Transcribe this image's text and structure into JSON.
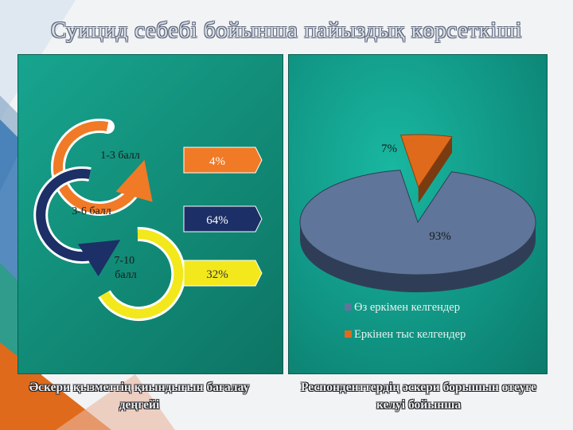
{
  "title": "Суицид себебі бойынша пайыздық көрсеткіші",
  "chart_data": [
    {
      "type": "table",
      "levels": [
        {
          "label": "1-3 балл",
          "value": 4,
          "value_label": "4%",
          "color": "#f07a26"
        },
        {
          "label": "3-6 балл",
          "value": 64,
          "value_label": "64%",
          "color": "#1c2f66"
        },
        {
          "label": "7-10\nбалл",
          "value": 32,
          "value_label": "32%",
          "color": "#f2e81c"
        }
      ],
      "caption": "Әскери қызметтің қиындығын бағалау деңгейі"
    },
    {
      "type": "pie",
      "slices": [
        {
          "name": "Өз еркімен келгендер",
          "value": 93,
          "label": "93%",
          "color": "#5f7599"
        },
        {
          "name": "Еркінен тыс келгендер",
          "value": 7,
          "label": "7%",
          "color": "#e06a1b"
        }
      ],
      "legend": "bottom",
      "caption": "Респонденттердің әскери борышын өтеуге келуі бойынша"
    }
  ]
}
